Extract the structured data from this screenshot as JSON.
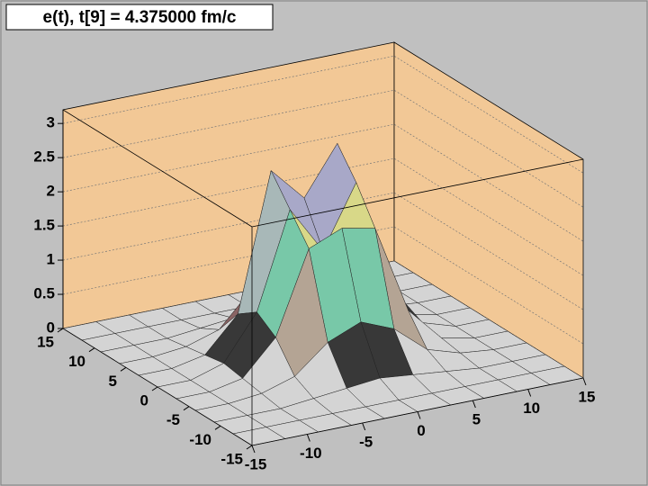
{
  "chart_data": {
    "type": "surface",
    "title": "e(t), t[9] = 4.375000 fm/c",
    "x": [
      -15,
      -12,
      -9,
      -6,
      -3,
      0,
      3,
      6,
      9,
      12,
      15
    ],
    "y": [
      -15,
      -12,
      -9,
      -6,
      -3,
      0,
      3,
      6,
      9,
      12,
      15
    ],
    "z": [
      [
        0,
        0,
        0,
        0,
        0,
        0,
        0,
        0,
        0,
        0,
        0
      ],
      [
        0,
        0,
        0,
        0,
        0,
        0,
        0,
        0,
        0,
        0,
        0
      ],
      [
        0,
        0,
        0,
        0.05,
        0.1,
        0.15,
        0.1,
        0.05,
        0,
        0,
        0
      ],
      [
        0,
        0,
        0.05,
        0.2,
        0.6,
        0.8,
        0.6,
        0.2,
        0.05,
        0,
        0
      ],
      [
        0,
        0,
        0.1,
        0.6,
        1.8,
        2.0,
        1.9,
        0.6,
        0.1,
        0,
        0
      ],
      [
        0,
        0,
        0.15,
        0.8,
        2.2,
        1.5,
        2.4,
        0.8,
        0.15,
        0,
        0
      ],
      [
        0,
        0,
        0.1,
        0.6,
        2.6,
        2.1,
        2.8,
        0.6,
        0.1,
        0,
        0
      ],
      [
        0,
        0,
        0.05,
        0.2,
        0.7,
        0.9,
        0.7,
        0.2,
        0.05,
        0,
        0
      ],
      [
        0,
        0,
        0,
        0.05,
        0.1,
        0.15,
        0.1,
        0.05,
        0,
        0,
        0
      ],
      [
        0,
        0,
        0,
        0,
        0,
        0,
        0,
        0,
        0,
        0,
        0
      ],
      [
        0,
        0,
        0,
        0,
        0,
        0,
        0,
        0,
        0,
        0,
        0
      ]
    ],
    "xlim": [
      -15,
      15
    ],
    "ylim": [
      -15,
      15
    ],
    "zlim": [
      0,
      3.2
    ],
    "xticks": [
      -15,
      -10,
      -5,
      0,
      5,
      10,
      15
    ],
    "yticks": [
      -15,
      -10,
      -5,
      0,
      5,
      10,
      15
    ],
    "zticks": [
      0,
      0.5,
      1,
      1.5,
      2,
      2.5,
      3
    ],
    "grid": true,
    "wall_color": "#f2c896",
    "palette": [
      "#d4d4d4",
      "#383838",
      "#b4a494",
      "#8a6464",
      "#78c8a8",
      "#a8b8b8",
      "#d8d888",
      "#a8a8c8",
      "#e4c4a4",
      "#ff2040",
      "#e020e8"
    ]
  }
}
